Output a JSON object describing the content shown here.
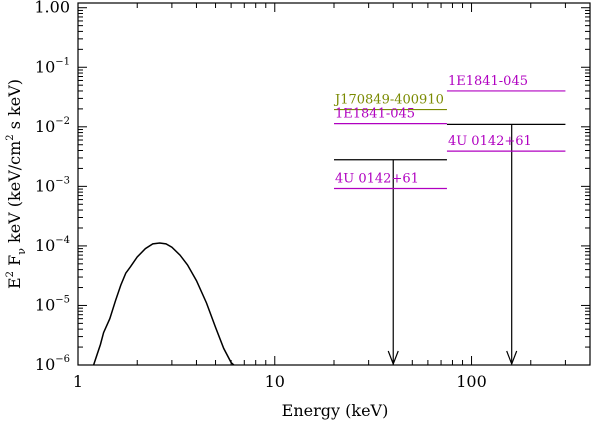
{
  "chart_data": {
    "type": "line",
    "xlabel": "Energy (keV)",
    "ylabel": {
      "base": "E",
      "sup1": "2",
      "mid1": " F",
      "sub1": "ν",
      "mid2": " keV (keV/cm",
      "sup2": "2",
      "tail": " s keV)"
    },
    "x_scale": "log",
    "y_scale": "log",
    "xlim": [
      1,
      400
    ],
    "ylim": [
      1e-06,
      1.2
    ],
    "x_ticks": [
      {
        "value": 1,
        "label": "1"
      },
      {
        "value": 10,
        "label": "10"
      },
      {
        "value": 100,
        "label": "100"
      }
    ],
    "y_ticks": [
      {
        "value": 1,
        "mant": "1.00",
        "exp": ""
      },
      {
        "value": 0.1,
        "mant": "10",
        "exp": "−1"
      },
      {
        "value": 0.01,
        "mant": "10",
        "exp": "−2"
      },
      {
        "value": 0.001,
        "mant": "10",
        "exp": "−3"
      },
      {
        "value": 0.0001,
        "mant": "10",
        "exp": "−4"
      },
      {
        "value": 1e-05,
        "mant": "10",
        "exp": "−5"
      },
      {
        "value": 1e-06,
        "mant": "10",
        "exp": "−6"
      }
    ],
    "spectrum": {
      "x": [
        1.2,
        1.25,
        1.3,
        1.35,
        1.45,
        1.55,
        1.65,
        1.75,
        1.85,
        2.0,
        2.2,
        2.4,
        2.6,
        2.8,
        3.0,
        3.3,
        3.6,
        4.0,
        4.5,
        5.0,
        5.5,
        6.0,
        6.2
      ],
      "y": [
        1e-06,
        1.5e-06,
        2.2e-06,
        3.5e-06,
        6e-06,
        1.2e-05,
        2.2e-05,
        3.5e-05,
        4.5e-05,
        6.5e-05,
        9e-05,
        0.000108,
        0.000112,
        0.000108,
        9.5e-05,
        7e-05,
        4.8e-05,
        2.6e-05,
        1.1e-05,
        4.3e-06,
        1.9e-06,
        1.1e-06,
        1e-06
      ]
    },
    "upper_limits": [
      {
        "x_range": [
          20,
          75
        ],
        "y": 0.0028,
        "arrow_x": 40,
        "color": "#000000"
      },
      {
        "x_range": [
          75,
          300
        ],
        "y": 0.011,
        "arrow_x": 160,
        "color": "#000000"
      }
    ],
    "labeled_lines": [
      {
        "label": "J170849-400910",
        "x_range": [
          20,
          75
        ],
        "y": 0.0195,
        "color": "#7a8a00"
      },
      {
        "label": "1E1841-045",
        "x_range": [
          20,
          75
        ],
        "y": 0.0113,
        "color": "#b000c0"
      },
      {
        "label": "4U 0142+61",
        "x_range": [
          20,
          75
        ],
        "y": 0.00092,
        "color": "#b000c0"
      },
      {
        "label": "1E1841-045",
        "x_range": [
          75,
          300
        ],
        "y": 0.04,
        "color": "#b000c0"
      },
      {
        "label": "4U 0142+61",
        "x_range": [
          75,
          300
        ],
        "y": 0.0039,
        "color": "#b000c0"
      }
    ]
  }
}
